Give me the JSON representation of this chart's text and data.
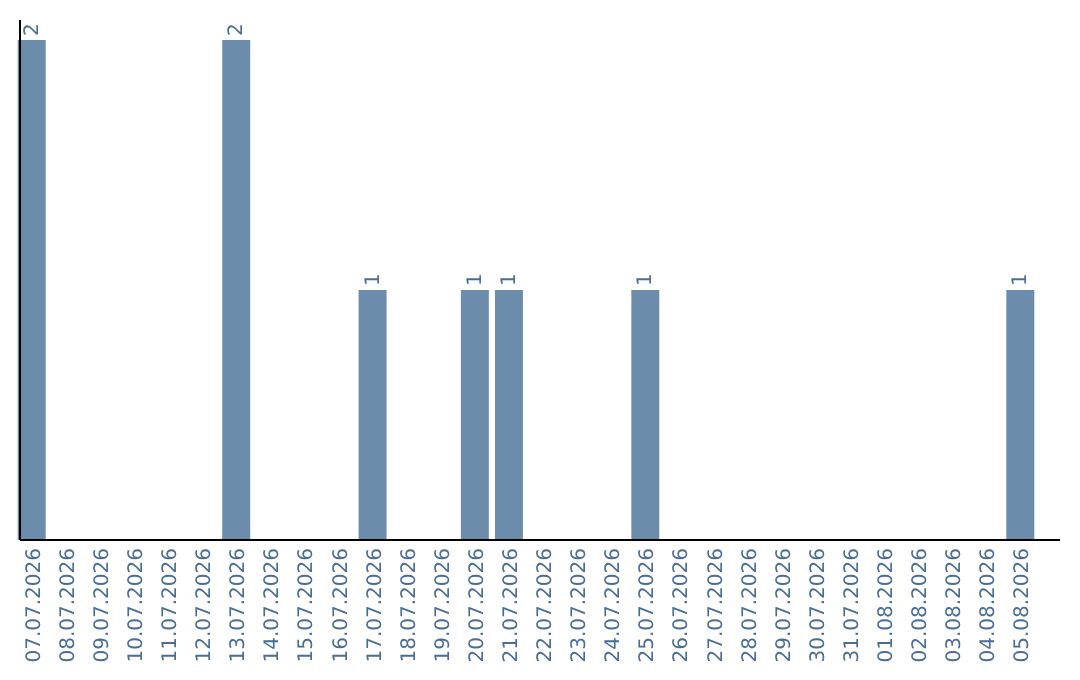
{
  "chart_data": {
    "type": "bar",
    "categories": [
      "07.07.2026",
      "08.07.2026",
      "09.07.2026",
      "10.07.2026",
      "11.07.2026",
      "12.07.2026",
      "13.07.2026",
      "14.07.2026",
      "15.07.2026",
      "16.07.2026",
      "17.07.2026",
      "18.07.2026",
      "19.07.2026",
      "20.07.2026",
      "21.07.2026",
      "22.07.2026",
      "23.07.2026",
      "24.07.2026",
      "25.07.2026",
      "26.07.2026",
      "27.07.2026",
      "28.07.2026",
      "29.07.2026",
      "30.07.2026",
      "31.07.2026",
      "01.08.2026",
      "02.08.2026",
      "03.08.2026",
      "04.08.2026",
      "05.08.2026"
    ],
    "values": [
      2,
      0,
      0,
      0,
      0,
      0,
      2,
      0,
      0,
      0,
      1,
      0,
      0,
      1,
      1,
      0,
      0,
      0,
      1,
      0,
      0,
      0,
      0,
      0,
      0,
      0,
      0,
      0,
      0,
      1
    ],
    "value_labels": [
      "2",
      null,
      null,
      null,
      null,
      null,
      "2",
      null,
      null,
      null,
      "1",
      null,
      null,
      "1",
      "1",
      null,
      null,
      null,
      "1",
      null,
      null,
      null,
      null,
      null,
      null,
      null,
      null,
      null,
      null,
      "1"
    ],
    "color": "#6b8cab",
    "tick_labels": "x"
  }
}
